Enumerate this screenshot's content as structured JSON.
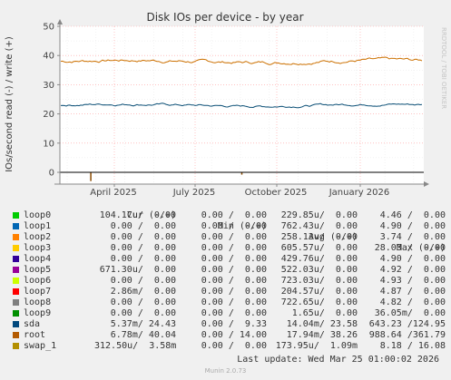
{
  "chart_data": {
    "type": "line",
    "title": "Disk IOs per device - by year",
    "ylabel": "IOs/second read (-) / write (+)",
    "xlabel": "",
    "ylim": [
      -5,
      50
    ],
    "yticks": [
      0,
      10,
      20,
      30,
      40,
      50
    ],
    "x_tick_labels": [
      "April 2025",
      "July 2025",
      "October 2025",
      "January 2026"
    ],
    "grid": true,
    "series": [
      {
        "name": "root",
        "color": "#cc7000",
        "level": 38,
        "noise": 0.7
      },
      {
        "name": "sda",
        "color": "#0b4f76",
        "level": 23,
        "noise": 0.5
      }
    ],
    "read_spikes": [
      {
        "series": "root",
        "x_fraction": 0.085,
        "value": -3
      },
      {
        "series": "root",
        "x_fraction": 0.5,
        "value": -0.8
      }
    ]
  },
  "legend": {
    "headers": {
      "cur": "Cur (-/+)",
      "min": "Min (-/+)",
      "avg": "Avg (-/+)",
      "max": "Max (-/+)"
    },
    "rows": [
      {
        "name": "loop0",
        "color": "#00cc00",
        "cur": "104.17u/  0.00",
        "min": "0.00 /  0.00",
        "avg": "229.85u/  0.00",
        "max": "4.46 /  0.00"
      },
      {
        "name": "loop1",
        "color": "#0066b3",
        "cur": "0.00 /  0.00",
        "min": "0.00 /  0.00",
        "avg": "762.43u/  0.00",
        "max": "4.90 /  0.00"
      },
      {
        "name": "loop2",
        "color": "#ff8000",
        "cur": "0.00 /  0.00",
        "min": "0.00 /  0.00",
        "avg": "258.13u/  0.00",
        "max": "3.74 /  0.00"
      },
      {
        "name": "loop3",
        "color": "#ffcc00",
        "cur": "0.00 /  0.00",
        "min": "0.00 /  0.00",
        "avg": "605.57u/  0.00",
        "max": "28.03 /  0.00"
      },
      {
        "name": "loop4",
        "color": "#330099",
        "cur": "0.00 /  0.00",
        "min": "0.00 /  0.00",
        "avg": "429.76u/  0.00",
        "max": "4.90 /  0.00"
      },
      {
        "name": "loop5",
        "color": "#990099",
        "cur": "671.30u/  0.00",
        "min": "0.00 /  0.00",
        "avg": "522.03u/  0.00",
        "max": "4.92 /  0.00"
      },
      {
        "name": "loop6",
        "color": "#ccff00",
        "cur": "0.00 /  0.00",
        "min": "0.00 /  0.00",
        "avg": "723.03u/  0.00",
        "max": "4.93 /  0.00"
      },
      {
        "name": "loop7",
        "color": "#ff0000",
        "cur": "2.86m/  0.00",
        "min": "0.00 /  0.00",
        "avg": "204.57u/  0.00",
        "max": "4.87 /  0.00"
      },
      {
        "name": "loop8",
        "color": "#808080",
        "cur": "0.00 /  0.00",
        "min": "0.00 /  0.00",
        "avg": "722.65u/  0.00",
        "max": "4.82 /  0.00"
      },
      {
        "name": "loop9",
        "color": "#008f00",
        "cur": "0.00 /  0.00",
        "min": "0.00 /  0.00",
        "avg": "1.65u/  0.00",
        "max": "36.05m/  0.00"
      },
      {
        "name": "sda",
        "color": "#00487d",
        "cur": "5.37m/ 24.43",
        "min": "0.00 /  9.33",
        "avg": "14.04m/ 23.58",
        "max": "643.23 /124.95"
      },
      {
        "name": "root",
        "color": "#b35a00",
        "cur": "6.78m/ 40.04",
        "min": "0.00 / 14.00",
        "avg": "17.94m/ 38.26",
        "max": "988.64 /361.79"
      },
      {
        "name": "swap_1",
        "color": "#b38f00",
        "cur": "312.50u/  3.58m",
        "min": "0.00 /  0.00",
        "avg": "173.95u/  1.09m",
        "max": "8.18 / 16.08"
      }
    ]
  },
  "footer": {
    "last_update": "Last update: Wed Mar 25 01:00:02 2026",
    "version": "Munin 2.0.73",
    "side_credit": "RRDTOOL / TOBI OETIKER"
  }
}
